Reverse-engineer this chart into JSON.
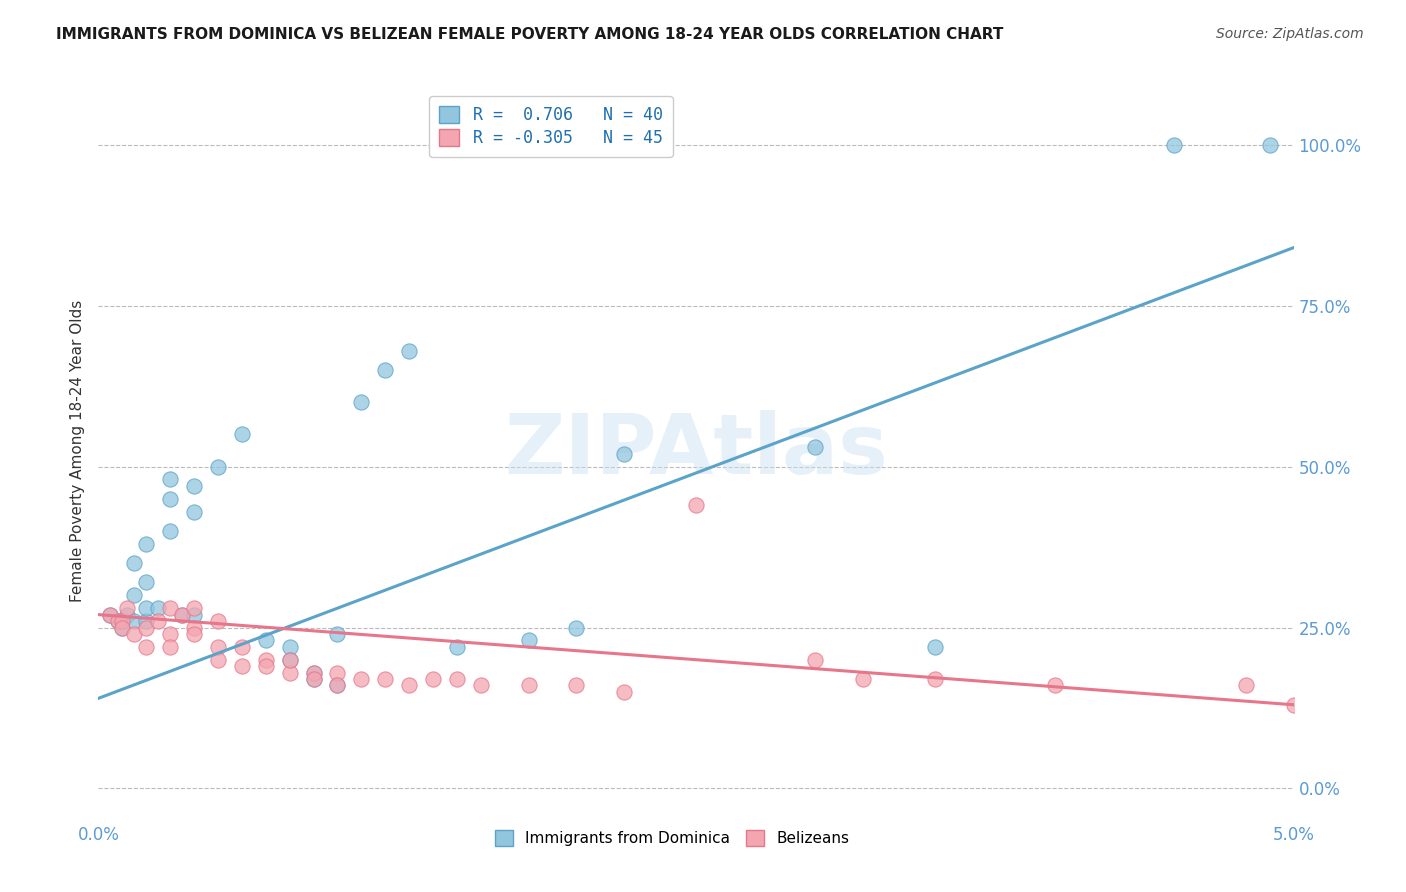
{
  "title": "IMMIGRANTS FROM DOMINICA VS BELIZEAN FEMALE POVERTY AMONG 18-24 YEAR OLDS CORRELATION CHART",
  "source": "Source: ZipAtlas.com",
  "ylabel": "Female Poverty Among 18-24 Year Olds",
  "xlim": [
    0.0,
    0.05
  ],
  "ylim": [
    -0.05,
    1.1
  ],
  "yticks": [
    0.0,
    0.25,
    0.5,
    0.75,
    1.0
  ],
  "ytick_labels": [
    "0.0%",
    "25.0%",
    "50.0%",
    "75.0%",
    "100.0%"
  ],
  "xtick_left": "0.0%",
  "xtick_right": "5.0%",
  "legend_line1": "R =  0.706   N = 40",
  "legend_line2": "R = -0.305   N = 45",
  "color_blue": "#92C5DE",
  "color_pink": "#F4A6B0",
  "color_line_blue": "#5BA3C9",
  "color_line_pink": "#E8768A",
  "watermark": "ZIPAtlas",
  "blue_scatter": [
    [
      0.0005,
      0.27
    ],
    [
      0.0008,
      0.26
    ],
    [
      0.001,
      0.26
    ],
    [
      0.001,
      0.25
    ],
    [
      0.0012,
      0.27
    ],
    [
      0.0015,
      0.26
    ],
    [
      0.0015,
      0.3
    ],
    [
      0.0015,
      0.35
    ],
    [
      0.002,
      0.26
    ],
    [
      0.002,
      0.28
    ],
    [
      0.002,
      0.32
    ],
    [
      0.002,
      0.38
    ],
    [
      0.0025,
      0.28
    ],
    [
      0.003,
      0.4
    ],
    [
      0.003,
      0.45
    ],
    [
      0.003,
      0.48
    ],
    [
      0.0035,
      0.27
    ],
    [
      0.004,
      0.27
    ],
    [
      0.004,
      0.43
    ],
    [
      0.004,
      0.47
    ],
    [
      0.005,
      0.5
    ],
    [
      0.006,
      0.55
    ],
    [
      0.007,
      0.23
    ],
    [
      0.008,
      0.22
    ],
    [
      0.008,
      0.2
    ],
    [
      0.009,
      0.18
    ],
    [
      0.009,
      0.17
    ],
    [
      0.01,
      0.16
    ],
    [
      0.01,
      0.24
    ],
    [
      0.011,
      0.6
    ],
    [
      0.012,
      0.65
    ],
    [
      0.013,
      0.68
    ],
    [
      0.015,
      0.22
    ],
    [
      0.018,
      0.23
    ],
    [
      0.02,
      0.25
    ],
    [
      0.022,
      0.52
    ],
    [
      0.03,
      0.53
    ],
    [
      0.035,
      0.22
    ],
    [
      0.045,
      1.0
    ],
    [
      0.049,
      1.0
    ]
  ],
  "pink_scatter": [
    [
      0.0005,
      0.27
    ],
    [
      0.0008,
      0.26
    ],
    [
      0.001,
      0.26
    ],
    [
      0.001,
      0.25
    ],
    [
      0.0012,
      0.28
    ],
    [
      0.0015,
      0.24
    ],
    [
      0.002,
      0.25
    ],
    [
      0.002,
      0.22
    ],
    [
      0.0025,
      0.26
    ],
    [
      0.003,
      0.24
    ],
    [
      0.003,
      0.22
    ],
    [
      0.003,
      0.28
    ],
    [
      0.0035,
      0.27
    ],
    [
      0.004,
      0.25
    ],
    [
      0.004,
      0.24
    ],
    [
      0.004,
      0.28
    ],
    [
      0.005,
      0.22
    ],
    [
      0.005,
      0.2
    ],
    [
      0.005,
      0.26
    ],
    [
      0.006,
      0.19
    ],
    [
      0.006,
      0.22
    ],
    [
      0.007,
      0.2
    ],
    [
      0.007,
      0.19
    ],
    [
      0.008,
      0.18
    ],
    [
      0.008,
      0.2
    ],
    [
      0.009,
      0.18
    ],
    [
      0.009,
      0.17
    ],
    [
      0.01,
      0.18
    ],
    [
      0.01,
      0.16
    ],
    [
      0.011,
      0.17
    ],
    [
      0.012,
      0.17
    ],
    [
      0.013,
      0.16
    ],
    [
      0.014,
      0.17
    ],
    [
      0.015,
      0.17
    ],
    [
      0.016,
      0.16
    ],
    [
      0.018,
      0.16
    ],
    [
      0.02,
      0.16
    ],
    [
      0.022,
      0.15
    ],
    [
      0.025,
      0.44
    ],
    [
      0.03,
      0.2
    ],
    [
      0.032,
      0.17
    ],
    [
      0.035,
      0.17
    ],
    [
      0.04,
      0.16
    ],
    [
      0.048,
      0.16
    ],
    [
      0.05,
      0.13
    ]
  ],
  "blue_trendline_x": [
    0.0,
    0.05
  ],
  "blue_trendline_y": [
    0.14,
    0.84
  ],
  "pink_trendline_x": [
    0.0,
    0.05
  ],
  "pink_trendline_y": [
    0.27,
    0.13
  ]
}
